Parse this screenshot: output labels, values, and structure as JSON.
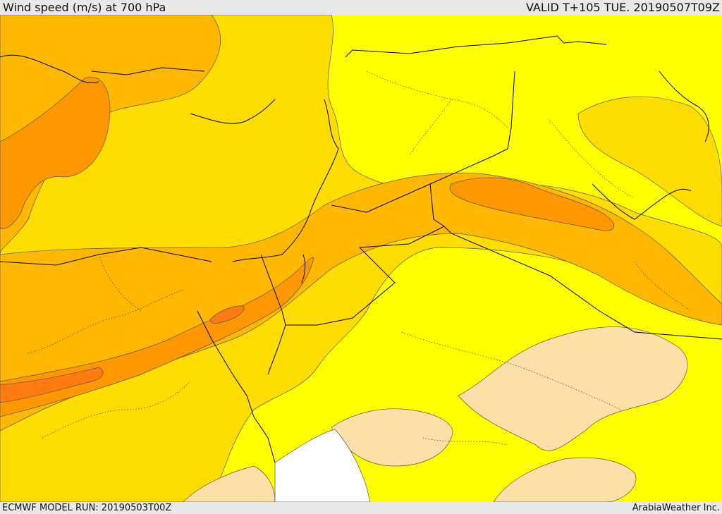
{
  "header": {
    "title": "Wind speed (m/s) at 700 hPa",
    "valid": "VALID T+105 TUE. 20190507T09Z"
  },
  "footer": {
    "model_run": "ECMWF MODEL RUN: 20190503T00Z",
    "brand": "ArabiaWeather Inc."
  },
  "palette": {
    "calm": "#fce0a8",
    "low": "#ffff00",
    "moderate": "#ffdd00",
    "fresh": "#ffb800",
    "strong": "#ff9800",
    "very_strong": "#ff7a10",
    "missing": "#ffffff"
  }
}
